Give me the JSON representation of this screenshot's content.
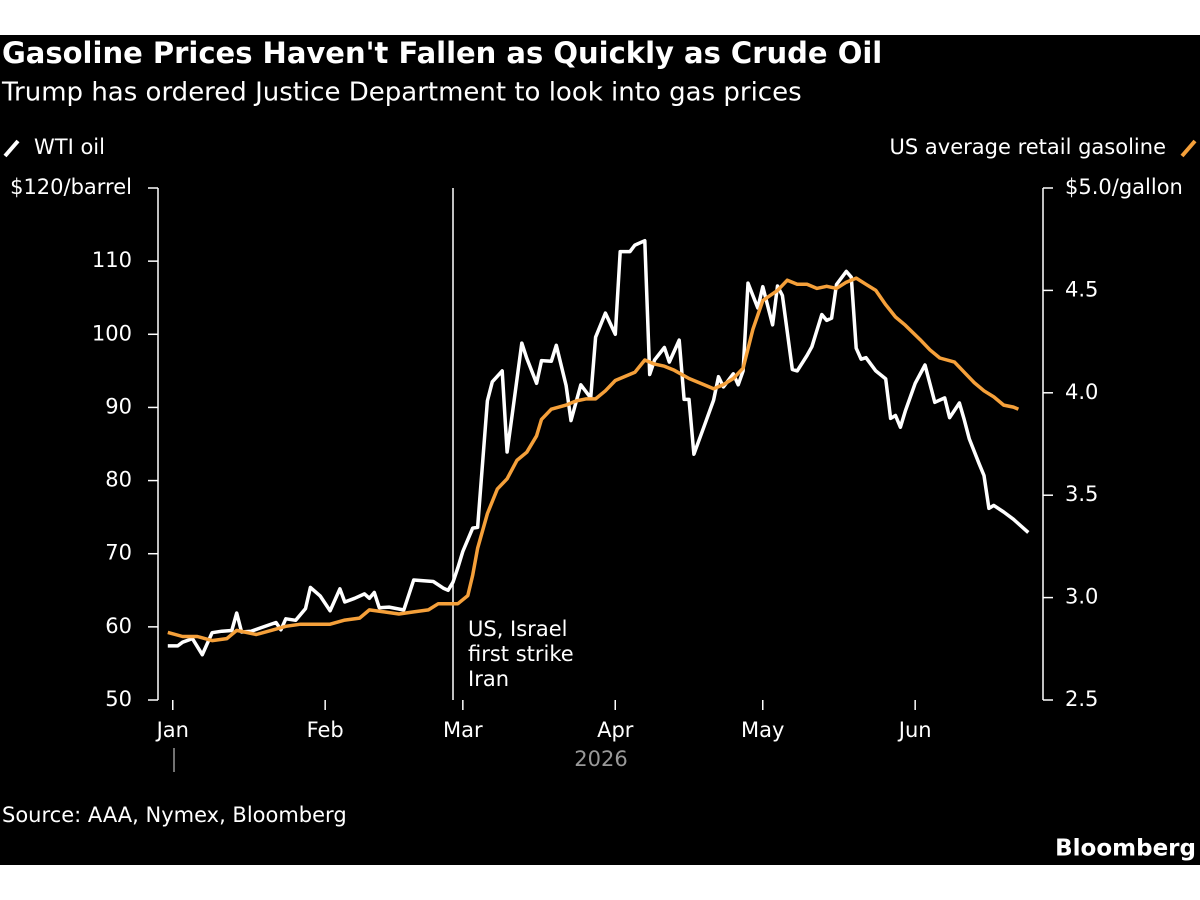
{
  "chart_data": {
    "type": "line",
    "title": "Gasoline Prices Haven't Fallen as Quickly as Crude Oil",
    "subtitle": "Trump has ordered Justice Department to look into gas prices",
    "source": "Source: AAA, Nymex, Bloomberg",
    "logo": "Bloomberg",
    "xlabel": "2026",
    "xlim": [
      -3,
      177
    ],
    "xticks": [
      {
        "value": 0,
        "label": "Jan"
      },
      {
        "value": 31,
        "label": "Feb"
      },
      {
        "value": 59,
        "label": "Mar"
      },
      {
        "value": 90,
        "label": "Apr"
      },
      {
        "value": 120,
        "label": "May"
      },
      {
        "value": 151,
        "label": "Jun"
      }
    ],
    "ylim": [
      50,
      120
    ],
    "yticks": [
      50,
      60,
      70,
      80,
      90,
      100,
      110,
      {
        "value": 120,
        "label": "$120/barrel"
      }
    ],
    "y2lim": [
      2.5,
      5.0
    ],
    "y2ticks": [
      2.5,
      {
        "value": 3.0,
        "label": "3.0"
      },
      3.5,
      {
        "value": 4.0,
        "label": "4.0"
      },
      4.5,
      {
        "value": 5.0,
        "label": "$5.0/gallon"
      }
    ],
    "annotation": {
      "x": 57,
      "lines": [
        "US, Israel",
        "first strike",
        "Iran"
      ]
    },
    "series": [
      {
        "name": "WTI oil",
        "color": "#ffffff",
        "axis": "y",
        "x": [
          -1,
          1,
          2,
          4,
          6,
          8,
          10,
          12,
          13,
          14,
          16,
          18,
          21,
          22,
          23,
          25,
          27,
          28,
          30,
          32,
          34,
          35,
          37,
          39,
          40,
          41,
          42,
          44,
          47,
          49,
          51,
          53,
          55,
          56,
          57,
          58,
          59,
          61,
          62,
          64,
          65,
          67,
          68,
          69,
          71,
          72,
          74,
          75,
          77,
          78,
          80,
          81,
          83,
          85,
          86,
          88,
          90,
          91,
          93,
          94,
          96,
          97,
          98,
          100,
          101,
          103,
          104,
          105,
          106,
          108,
          110,
          111,
          112,
          114,
          115,
          116,
          117,
          119,
          120,
          122,
          123,
          124,
          126,
          127,
          129,
          130,
          132,
          133,
          134,
          135,
          137,
          138,
          139,
          140,
          141,
          143,
          145,
          146,
          147,
          148,
          149,
          151,
          153,
          155,
          157,
          158,
          160,
          161,
          162,
          164,
          165,
          166,
          167,
          169,
          171,
          173,
          174
        ],
        "values": [
          57.4,
          57.4,
          57.9,
          58.4,
          56.2,
          59.2,
          59.4,
          59.5,
          61.9,
          59.3,
          59.4,
          59.9,
          60.6,
          59.6,
          61.1,
          60.9,
          62.5,
          65.4,
          64.2,
          62.2,
          65.2,
          63.4,
          63.9,
          64.5,
          63.9,
          64.7,
          62.6,
          62.7,
          62.3,
          66.4,
          66.3,
          66.2,
          65.3,
          65.0,
          66.1,
          68.1,
          70.3,
          73.5,
          73.6,
          90.9,
          93.5,
          95.0,
          83.9,
          88.8,
          98.8,
          96.7,
          93.3,
          96.4,
          96.3,
          98.5,
          93.0,
          88.2,
          93.1,
          91.3,
          99.6,
          102.9,
          100.0,
          111.3,
          111.3,
          112.2,
          112.8,
          94.5,
          96.5,
          98.2,
          96.2,
          99.2,
          91.1,
          91.1,
          83.6,
          87.3,
          91.0,
          94.2,
          92.8,
          94.6,
          93.1,
          95.0,
          107.0,
          103.6,
          106.5,
          101.3,
          106.6,
          105.3,
          95.2,
          95.0,
          97.1,
          98.3,
          102.7,
          101.9,
          102.2,
          106.8,
          108.6,
          107.8,
          98.1,
          96.6,
          96.8,
          95.0,
          93.9,
          88.5,
          88.9,
          87.3,
          89.5,
          93.3,
          95.8,
          90.7,
          91.3,
          88.6,
          90.6,
          88.3,
          85.7,
          82.3,
          80.7,
          76.2,
          76.6,
          75.7,
          74.7,
          73.5,
          72.9
        ]
      },
      {
        "name": "US average retail gasoline",
        "color": "#f5a03a",
        "axis": "y2",
        "x": [
          -1,
          2,
          5,
          8,
          11,
          13,
          17,
          20,
          23,
          26,
          29,
          32,
          35,
          38,
          40,
          43,
          46,
          49,
          52,
          54,
          56,
          58,
          60,
          61,
          62,
          64,
          66,
          68,
          70,
          72,
          74,
          75,
          77,
          80,
          82,
          84,
          86,
          88,
          90,
          92,
          94,
          96,
          98,
          100,
          102,
          105,
          108,
          110,
          112,
          114,
          116,
          118,
          120,
          123,
          125,
          127,
          129,
          131,
          133,
          135,
          137,
          139,
          141,
          143,
          145,
          147,
          149,
          152,
          154,
          156,
          159,
          161,
          163,
          165,
          167,
          169,
          171,
          172
        ],
        "values": [
          2.83,
          2.81,
          2.81,
          2.79,
          2.8,
          2.84,
          2.82,
          2.84,
          2.86,
          2.87,
          2.87,
          2.87,
          2.89,
          2.9,
          2.94,
          2.93,
          2.92,
          2.93,
          2.94,
          2.97,
          2.97,
          2.97,
          3.01,
          3.11,
          3.24,
          3.41,
          3.53,
          3.58,
          3.67,
          3.71,
          3.79,
          3.87,
          3.92,
          3.94,
          3.96,
          3.97,
          3.97,
          4.01,
          4.06,
          4.08,
          4.1,
          4.16,
          4.14,
          4.13,
          4.11,
          4.07,
          4.04,
          4.02,
          4.04,
          4.07,
          4.12,
          4.31,
          4.45,
          4.5,
          4.55,
          4.53,
          4.53,
          4.51,
          4.52,
          4.51,
          4.54,
          4.56,
          4.53,
          4.5,
          4.43,
          4.37,
          4.33,
          4.26,
          4.21,
          4.17,
          4.15,
          4.1,
          4.05,
          4.01,
          3.98,
          3.94,
          3.93,
          3.92
        ]
      }
    ]
  }
}
